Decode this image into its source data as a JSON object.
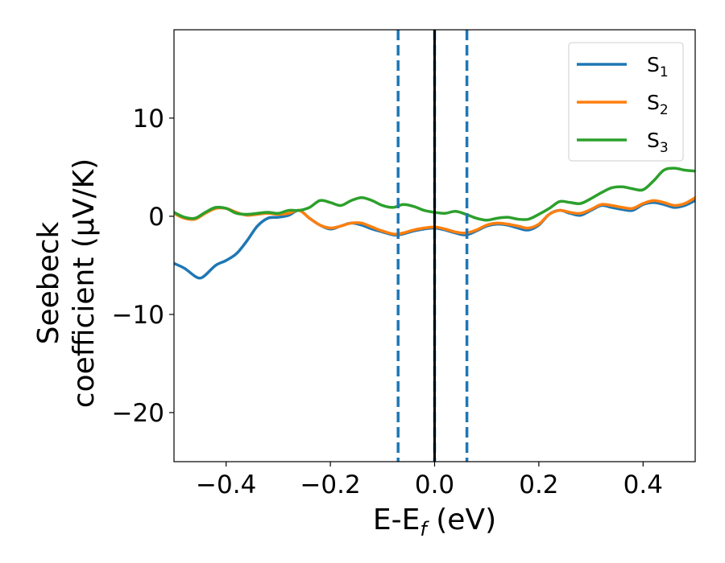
{
  "chart_data": {
    "type": "line",
    "xlabel_main": "E-E",
    "xlabel_sub": "f",
    "xlabel_unit": " (eV)",
    "ylabel_line1": "Seebeck",
    "ylabel_line2": "coefficient  (μV/K)",
    "xlim": [
      -0.5,
      0.5
    ],
    "ylim": [
      -25,
      19
    ],
    "xticks": [
      -0.4,
      -0.2,
      0.0,
      0.2,
      0.4
    ],
    "xtick_labels": [
      "−0.4",
      "−0.2",
      "0.0",
      "0.2",
      "0.4"
    ],
    "yticks": [
      -20,
      -10,
      0,
      10
    ],
    "ytick_labels": [
      "−20",
      "−10",
      "0",
      "10"
    ],
    "grid": false,
    "legend_position": "top-right",
    "vlines": [
      {
        "x": -0.07,
        "style": "dashed",
        "color": "#1f77b4"
      },
      {
        "x": 0.0,
        "style": "dashed",
        "color": "#1f77b4"
      },
      {
        "x": 0.062,
        "style": "dashed",
        "color": "#1f77b4"
      },
      {
        "x": 0.0,
        "style": "solid",
        "color": "#000000"
      }
    ],
    "series": [
      {
        "name": "S",
        "sub": "1",
        "color": "#1f77b4",
        "x": [
          -0.5,
          -0.48,
          -0.46,
          -0.45,
          -0.44,
          -0.42,
          -0.4,
          -0.38,
          -0.36,
          -0.34,
          -0.32,
          -0.3,
          -0.28,
          -0.26,
          -0.24,
          -0.22,
          -0.2,
          -0.18,
          -0.16,
          -0.14,
          -0.12,
          -0.1,
          -0.08,
          -0.07,
          -0.06,
          -0.04,
          -0.02,
          0.0,
          0.02,
          0.04,
          0.06,
          0.08,
          0.1,
          0.12,
          0.14,
          0.16,
          0.18,
          0.2,
          0.22,
          0.24,
          0.26,
          0.28,
          0.3,
          0.32,
          0.34,
          0.36,
          0.38,
          0.4,
          0.42,
          0.44,
          0.46,
          0.48,
          0.5
        ],
        "y": [
          -4.8,
          -5.3,
          -6.1,
          -6.3,
          -6.0,
          -5.0,
          -4.5,
          -3.8,
          -2.5,
          -1.0,
          -0.2,
          -0.1,
          0.1,
          0.6,
          -0.2,
          -0.9,
          -1.3,
          -1.0,
          -0.7,
          -0.9,
          -1.3,
          -1.6,
          -1.9,
          -1.9,
          -1.8,
          -1.5,
          -1.3,
          -1.2,
          -1.4,
          -1.7,
          -1.9,
          -1.5,
          -1.0,
          -0.8,
          -0.9,
          -1.2,
          -1.4,
          -0.9,
          0.2,
          0.6,
          0.3,
          0.1,
          0.6,
          1.1,
          0.9,
          0.7,
          0.6,
          1.2,
          1.4,
          1.2,
          0.9,
          1.1,
          1.6
        ]
      },
      {
        "name": "S",
        "sub": "2",
        "color": "#ff7f0e",
        "x": [
          -0.5,
          -0.48,
          -0.46,
          -0.44,
          -0.42,
          -0.4,
          -0.38,
          -0.36,
          -0.34,
          -0.32,
          -0.3,
          -0.28,
          -0.26,
          -0.24,
          -0.22,
          -0.2,
          -0.18,
          -0.16,
          -0.14,
          -0.12,
          -0.1,
          -0.08,
          -0.07,
          -0.06,
          -0.04,
          -0.02,
          0.0,
          0.02,
          0.04,
          0.06,
          0.08,
          0.1,
          0.12,
          0.14,
          0.16,
          0.18,
          0.2,
          0.22,
          0.24,
          0.26,
          0.28,
          0.3,
          0.32,
          0.34,
          0.36,
          0.38,
          0.4,
          0.42,
          0.44,
          0.46,
          0.48,
          0.5
        ],
        "y": [
          0.3,
          -0.2,
          -0.3,
          0.3,
          0.8,
          0.8,
          0.4,
          0.1,
          0.2,
          0.3,
          0.2,
          0.3,
          0.6,
          -0.2,
          -0.9,
          -1.2,
          -1.0,
          -0.7,
          -0.7,
          -1.1,
          -1.5,
          -1.8,
          -1.8,
          -1.7,
          -1.4,
          -1.2,
          -1.1,
          -1.3,
          -1.6,
          -1.7,
          -1.4,
          -0.9,
          -0.7,
          -0.8,
          -1.0,
          -1.2,
          -0.8,
          0.2,
          0.6,
          0.4,
          0.3,
          0.7,
          1.2,
          1.1,
          0.9,
          0.8,
          1.3,
          1.6,
          1.4,
          1.1,
          1.3,
          1.9
        ]
      },
      {
        "name": "S",
        "sub": "3",
        "color": "#2ca02c",
        "x": [
          -0.5,
          -0.48,
          -0.46,
          -0.44,
          -0.42,
          -0.4,
          -0.38,
          -0.36,
          -0.34,
          -0.32,
          -0.3,
          -0.28,
          -0.26,
          -0.24,
          -0.22,
          -0.2,
          -0.18,
          -0.16,
          -0.14,
          -0.12,
          -0.1,
          -0.08,
          -0.06,
          -0.04,
          -0.02,
          0.0,
          0.02,
          0.04,
          0.06,
          0.08,
          0.1,
          0.12,
          0.14,
          0.16,
          0.18,
          0.2,
          0.22,
          0.24,
          0.26,
          0.28,
          0.3,
          0.32,
          0.34,
          0.36,
          0.38,
          0.4,
          0.42,
          0.44,
          0.46,
          0.48,
          0.5
        ],
        "y": [
          0.4,
          -0.1,
          -0.2,
          0.4,
          0.9,
          0.8,
          0.3,
          0.2,
          0.3,
          0.4,
          0.3,
          0.6,
          0.6,
          0.9,
          1.6,
          1.4,
          1.1,
          1.6,
          1.9,
          1.6,
          1.1,
          0.9,
          1.2,
          1.0,
          0.6,
          0.4,
          0.3,
          0.5,
          0.2,
          -0.2,
          -0.4,
          -0.2,
          -0.1,
          -0.3,
          -0.3,
          0.2,
          0.8,
          1.5,
          1.4,
          1.3,
          1.8,
          2.4,
          2.9,
          3.0,
          2.8,
          2.7,
          3.6,
          4.7,
          4.9,
          4.7,
          4.6
        ]
      }
    ]
  }
}
